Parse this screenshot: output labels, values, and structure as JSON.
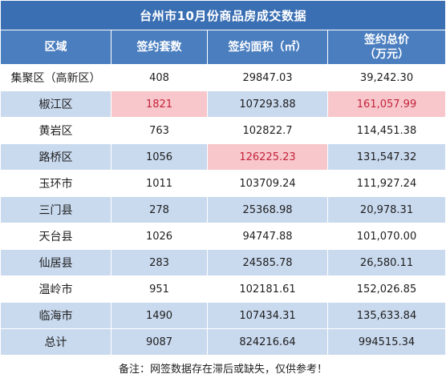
{
  "title": "台州市10月份商品房成交数据",
  "headers": {
    "region": "区域",
    "units": "签约套数",
    "area": "签约面积（㎡）",
    "total_line1": "签约总价",
    "total_line2": "（万元）"
  },
  "rows": [
    {
      "region": "集聚区（高新区）",
      "units": "408",
      "area": "29847.03",
      "total": "39,242.30"
    },
    {
      "region": "椒江区",
      "units": "1821",
      "area": "107293.88",
      "total": "161,057.99"
    },
    {
      "region": "黄岩区",
      "units": "763",
      "area": "102822.7",
      "total": "114,451.38"
    },
    {
      "region": "路桥区",
      "units": "1056",
      "area": "126225.23",
      "total": "131,547.32"
    },
    {
      "region": "玉环市",
      "units": "1011",
      "area": "103709.24",
      "total": "111,927.24"
    },
    {
      "region": "三门县",
      "units": "278",
      "area": "25368.98",
      "total": "20,978.31"
    },
    {
      "region": "天台县",
      "units": "1026",
      "area": "94747.88",
      "total": "101,070.00"
    },
    {
      "region": "仙居县",
      "units": "283",
      "area": "24585.78",
      "total": "26,580.11"
    },
    {
      "region": "温岭市",
      "units": "951",
      "area": "102181.61",
      "total": "152,026.85"
    },
    {
      "region": "临海市",
      "units": "1490",
      "area": "107434.31",
      "total": "135,633.84"
    }
  ],
  "total_row": {
    "region": "总计",
    "units": "9087",
    "area": "824216.64",
    "total": "994515.34"
  },
  "note": "备注：网签数据存在滞后或缺失，仅供参考！",
  "colors": {
    "title_bg": "#3a6fb3",
    "header_bg": "#4a7ebf",
    "stripe_bg": "#c9d9ee",
    "highlight_bg": "#f7c7cc",
    "highlight_text": "#c4243b"
  }
}
